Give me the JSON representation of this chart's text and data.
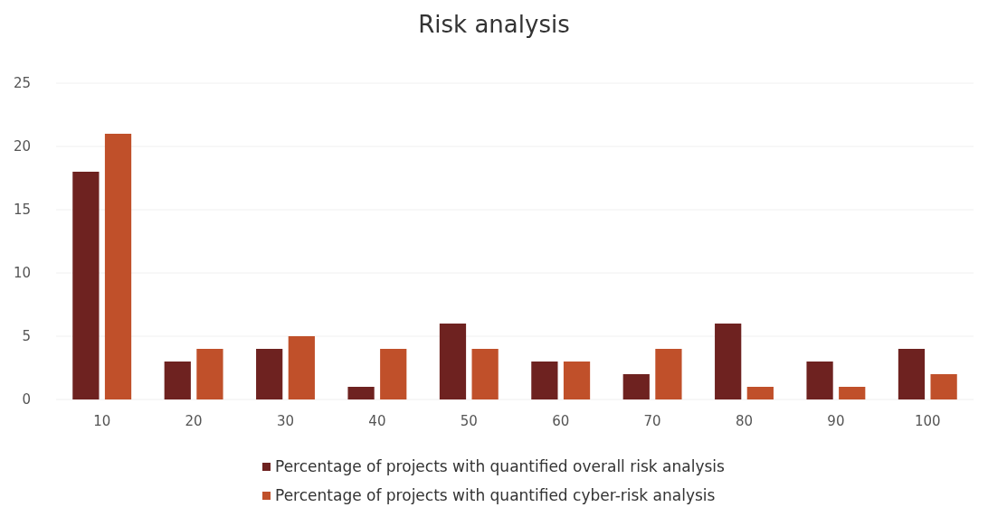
{
  "chart_data": {
    "type": "bar",
    "title": "Risk analysis",
    "categories": [
      "10",
      "20",
      "30",
      "40",
      "50",
      "60",
      "70",
      "80",
      "90",
      "100"
    ],
    "series": [
      {
        "name": "Percentage of projects with quantified overall risk analysis",
        "color": "#6e2220",
        "values": [
          18,
          3,
          4,
          1,
          6,
          3,
          2,
          6,
          3,
          4
        ]
      },
      {
        "name": "Percentage of projects with quantified cyber-risk analysis",
        "color": "#c0502a",
        "values": [
          21,
          4,
          5,
          4,
          4,
          3,
          4,
          1,
          1,
          2
        ]
      }
    ],
    "ylim": [
      0,
      25
    ],
    "yticks": [
      0,
      5,
      10,
      15,
      20,
      25
    ],
    "grid": "y",
    "legend": "bottom"
  }
}
